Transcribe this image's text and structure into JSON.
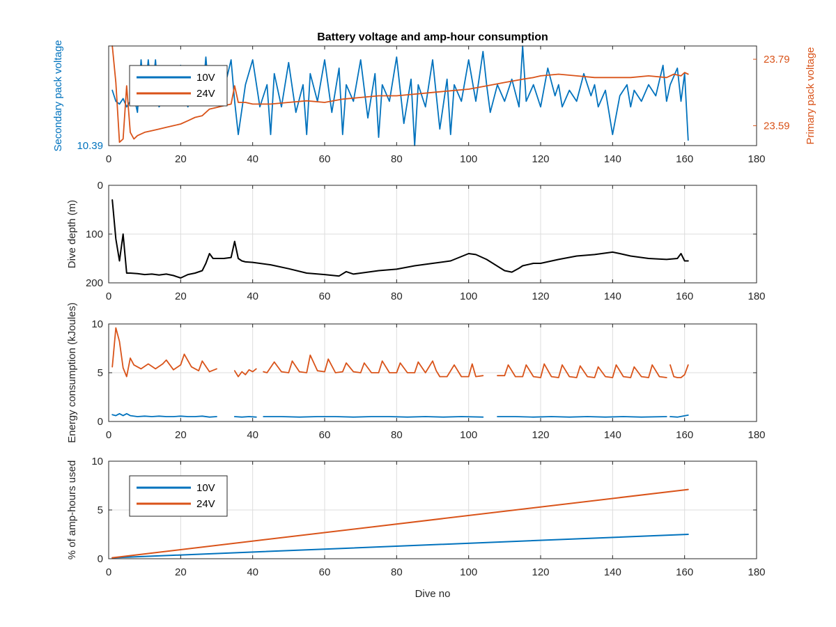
{
  "figure": {
    "title": "Battery voltage and amp-hour consumption",
    "xlabel": "Dive no"
  },
  "colors": {
    "blue": "#0072BD",
    "orange": "#D95319",
    "black": "#000000",
    "axis_text": "#262626",
    "grid": "#dcdcdc"
  },
  "chart_data": [
    {
      "type": "line",
      "title": "Battery voltage and amp-hour consumption",
      "xlabel": "",
      "ylabel": "Secondary pack voltage",
      "y2label": "Primary pack voltage",
      "xlim": [
        0,
        180
      ],
      "xticks": [
        0,
        20,
        40,
        60,
        80,
        100,
        120,
        140,
        160,
        180
      ],
      "ylim": [
        10.39,
        10.57
      ],
      "yticks": [
        10.39
      ],
      "ytick_labels": [
        "10.39"
      ],
      "y2lim": [
        23.53,
        23.83
      ],
      "y2ticks": [
        23.59,
        23.79
      ],
      "y2tick_labels": [
        "23.59",
        "23.79"
      ],
      "grid": false,
      "legend": {
        "location": "top-left",
        "entries": [
          "10V",
          "24V"
        ]
      },
      "series": [
        {
          "name": "10V",
          "axis": "left",
          "color": "#0072BD",
          "x": [
            1,
            2,
            3,
            4,
            5,
            6,
            7,
            8,
            9,
            10,
            11,
            12,
            13,
            14,
            15,
            16,
            17,
            18,
            19,
            20,
            21,
            22,
            23,
            24,
            25,
            26,
            27,
            28,
            30,
            32,
            34,
            35,
            36,
            38,
            40,
            42,
            44,
            45,
            46,
            48,
            50,
            52,
            54,
            55,
            56,
            58,
            60,
            62,
            64,
            65,
            66,
            68,
            70,
            72,
            74,
            75,
            76,
            78,
            80,
            82,
            84,
            85,
            86,
            88,
            90,
            92,
            94,
            95,
            96,
            98,
            100,
            102,
            104,
            105,
            106,
            108,
            110,
            112,
            114,
            115,
            116,
            118,
            120,
            122,
            124,
            125,
            126,
            128,
            130,
            132,
            134,
            135,
            136,
            138,
            140,
            142,
            144,
            145,
            146,
            148,
            150,
            152,
            154,
            155,
            156,
            158,
            159,
            160,
            161
          ],
          "values": [
            10.49,
            10.47,
            10.465,
            10.475,
            10.46,
            10.47,
            10.48,
            10.45,
            10.545,
            10.47,
            10.545,
            10.48,
            10.545,
            10.46,
            10.47,
            10.52,
            10.475,
            10.49,
            10.465,
            10.535,
            10.48,
            10.46,
            10.49,
            10.47,
            10.5,
            10.47,
            10.55,
            10.47,
            10.52,
            10.49,
            10.545,
            10.47,
            10.41,
            10.5,
            10.545,
            10.46,
            10.5,
            10.41,
            10.52,
            10.46,
            10.54,
            10.45,
            10.5,
            10.41,
            10.52,
            10.47,
            10.545,
            10.45,
            10.53,
            10.41,
            10.5,
            10.47,
            10.545,
            10.44,
            10.52,
            10.405,
            10.5,
            10.47,
            10.55,
            10.43,
            10.51,
            10.39,
            10.5,
            10.46,
            10.545,
            10.42,
            10.51,
            10.41,
            10.5,
            10.47,
            10.545,
            10.47,
            10.56,
            10.5,
            10.45,
            10.5,
            10.47,
            10.51,
            10.46,
            10.57,
            10.47,
            10.5,
            10.46,
            10.53,
            10.48,
            10.5,
            10.46,
            10.49,
            10.47,
            10.52,
            10.48,
            10.5,
            10.46,
            10.49,
            10.41,
            10.48,
            10.5,
            10.46,
            10.49,
            10.47,
            10.5,
            10.48,
            10.535,
            10.47,
            10.5,
            10.53,
            10.47,
            10.52,
            10.4
          ]
        },
        {
          "name": "24V",
          "axis": "right",
          "color": "#D95319",
          "x": [
            1,
            2,
            3,
            4,
            5,
            6,
            7,
            8,
            10,
            12,
            14,
            16,
            18,
            20,
            22,
            24,
            26,
            28,
            30,
            32,
            34,
            35,
            36,
            38,
            40,
            45,
            50,
            55,
            60,
            65,
            70,
            75,
            80,
            85,
            90,
            95,
            100,
            105,
            110,
            115,
            118,
            120,
            125,
            130,
            135,
            140,
            145,
            150,
            155,
            157,
            159,
            160,
            161
          ],
          "values": [
            23.83,
            23.72,
            23.54,
            23.55,
            23.71,
            23.57,
            23.55,
            23.56,
            23.57,
            23.575,
            23.58,
            23.585,
            23.59,
            23.595,
            23.605,
            23.615,
            23.62,
            23.64,
            23.645,
            23.65,
            23.655,
            23.71,
            23.66,
            23.66,
            23.655,
            23.655,
            23.66,
            23.665,
            23.66,
            23.67,
            23.675,
            23.68,
            23.68,
            23.685,
            23.69,
            23.695,
            23.7,
            23.71,
            23.72,
            23.73,
            23.735,
            23.74,
            23.745,
            23.74,
            23.735,
            23.735,
            23.735,
            23.74,
            23.735,
            23.745,
            23.74,
            23.75,
            23.745
          ]
        }
      ]
    },
    {
      "type": "line",
      "xlabel": "",
      "ylabel": "Dive depth (m)",
      "xlim": [
        0,
        180
      ],
      "xticks": [
        0,
        20,
        40,
        60,
        80,
        100,
        120,
        140,
        160,
        180
      ],
      "ylim": [
        0,
        200
      ],
      "y_reversed": true,
      "yticks": [
        0,
        100,
        200
      ],
      "grid": true,
      "series": [
        {
          "color": "#000000",
          "x": [
            1,
            2,
            3,
            4,
            5,
            6,
            8,
            10,
            12,
            14,
            16,
            18,
            20,
            22,
            24,
            26,
            27,
            28,
            29,
            30,
            32,
            34,
            35,
            36,
            37,
            38,
            40,
            45,
            50,
            55,
            60,
            64,
            66,
            68,
            70,
            75,
            80,
            85,
            90,
            95,
            100,
            102,
            105,
            110,
            112,
            114,
            115,
            118,
            120,
            125,
            130,
            135,
            140,
            142,
            145,
            150,
            155,
            158,
            159,
            160,
            161
          ],
          "values": [
            30,
            110,
            155,
            100,
            180,
            180,
            181,
            183,
            182,
            184,
            182,
            185,
            190,
            183,
            180,
            175,
            160,
            140,
            150,
            150,
            150,
            148,
            115,
            150,
            155,
            157,
            158,
            163,
            171,
            180,
            183,
            186,
            177,
            182,
            180,
            175,
            172,
            165,
            160,
            155,
            140,
            142,
            152,
            175,
            178,
            170,
            165,
            160,
            160,
            152,
            145,
            142,
            137,
            140,
            145,
            150,
            152,
            150,
            140,
            155,
            155
          ]
        }
      ]
    },
    {
      "type": "line",
      "xlabel": "",
      "ylabel": "Energy consumption (kJoules)",
      "xlim": [
        0,
        180
      ],
      "xticks": [
        0,
        20,
        40,
        60,
        80,
        100,
        120,
        140,
        160,
        180
      ],
      "ylim": [
        0,
        10
      ],
      "yticks": [
        0,
        5,
        10
      ],
      "grid": true,
      "series": [
        {
          "color": "#D95319",
          "segments": [
            {
              "x": [
                1,
                2,
                3,
                4,
                5,
                6,
                7,
                9,
                11,
                13,
                15,
                16,
                18,
                20,
                21,
                23,
                25,
                26,
                28,
                30
              ],
              "values": [
                5.6,
                9.6,
                8.2,
                5.5,
                4.6,
                6.5,
                5.8,
                5.4,
                5.9,
                5.4,
                5.9,
                6.3,
                5.3,
                5.8,
                6.9,
                5.6,
                5.2,
                6.2,
                5.1,
                5.4
              ]
            },
            {
              "x": [
                35,
                36,
                37,
                38,
                39,
                40,
                41
              ],
              "values": [
                5.2,
                4.6,
                5.1,
                4.8,
                5.3,
                5.1,
                5.4
              ]
            },
            {
              "x": [
                43,
                44,
                46,
                48,
                50,
                51,
                53,
                55,
                56,
                58,
                60,
                61,
                63,
                65,
                66,
                68,
                70,
                71,
                73,
                75,
                76,
                78,
                80,
                81,
                83,
                85,
                86,
                88,
                90,
                91,
                92,
                94,
                96,
                98,
                100,
                101,
                102,
                104
              ],
              "values": [
                5.1,
                5.0,
                6.1,
                5.1,
                5.0,
                6.2,
                5.1,
                5.0,
                6.8,
                5.2,
                5.1,
                6.4,
                5.0,
                5.1,
                6.0,
                5.1,
                5.0,
                6.0,
                5.0,
                5.0,
                6.2,
                5.0,
                5.0,
                6.0,
                5.0,
                5.0,
                6.1,
                5.0,
                6.2,
                5.2,
                4.6,
                4.6,
                5.8,
                4.6,
                4.6,
                5.9,
                4.6,
                4.7
              ]
            },
            {
              "x": [
                108,
                110,
                111,
                113,
                115,
                116,
                118,
                120,
                121,
                123,
                125,
                126,
                128,
                130,
                131,
                133,
                135,
                136,
                138,
                140,
                141,
                143,
                145,
                146,
                148,
                150,
                151,
                153,
                155
              ],
              "values": [
                4.7,
                4.7,
                5.8,
                4.6,
                4.6,
                5.8,
                4.6,
                4.5,
                5.9,
                4.6,
                4.5,
                5.8,
                4.6,
                4.5,
                5.7,
                4.6,
                4.5,
                5.6,
                4.6,
                4.5,
                5.8,
                4.6,
                4.5,
                5.6,
                4.6,
                4.5,
                5.8,
                4.6,
                4.5
              ]
            },
            {
              "x": [
                156,
                157,
                158,
                159,
                160,
                161
              ],
              "values": [
                5.8,
                4.6,
                4.5,
                4.5,
                4.8,
                5.8
              ]
            }
          ]
        },
        {
          "color": "#0072BD",
          "segments": [
            {
              "x": [
                1,
                2,
                3,
                4,
                5,
                6,
                8,
                10,
                12,
                14,
                16,
                18,
                20,
                22,
                24,
                26,
                28,
                30
              ],
              "values": [
                0.7,
                0.6,
                0.8,
                0.6,
                0.8,
                0.6,
                0.5,
                0.55,
                0.5,
                0.55,
                0.5,
                0.5,
                0.55,
                0.5,
                0.5,
                0.55,
                0.45,
                0.5
              ]
            },
            {
              "x": [
                35,
                37,
                39,
                41
              ],
              "values": [
                0.5,
                0.45,
                0.5,
                0.45
              ]
            },
            {
              "x": [
                43,
                48,
                53,
                58,
                63,
                68,
                73,
                78,
                83,
                88,
                93,
                98,
                104
              ],
              "values": [
                0.5,
                0.5,
                0.45,
                0.5,
                0.5,
                0.45,
                0.5,
                0.5,
                0.45,
                0.5,
                0.45,
                0.5,
                0.45
              ]
            },
            {
              "x": [
                108,
                113,
                118,
                123,
                128,
                133,
                138,
                143,
                148,
                155
              ],
              "values": [
                0.5,
                0.5,
                0.45,
                0.5,
                0.45,
                0.5,
                0.45,
                0.5,
                0.45,
                0.5
              ]
            },
            {
              "x": [
                156,
                158,
                161
              ],
              "values": [
                0.5,
                0.45,
                0.65
              ]
            }
          ]
        }
      ]
    },
    {
      "type": "line",
      "xlabel": "Dive no",
      "ylabel": "% of amp-hours used",
      "xlim": [
        0,
        180
      ],
      "xticks": [
        0,
        20,
        40,
        60,
        80,
        100,
        120,
        140,
        160,
        180
      ],
      "ylim": [
        0,
        10
      ],
      "yticks": [
        0,
        5,
        10
      ],
      "grid": true,
      "legend": {
        "location": "top-left",
        "entries": [
          "10V",
          "24V"
        ]
      },
      "series": [
        {
          "name": "10V",
          "color": "#0072BD",
          "x": [
            1,
            161
          ],
          "values": [
            0.1,
            2.5
          ]
        },
        {
          "name": "24V",
          "color": "#D95319",
          "x": [
            1,
            161
          ],
          "values": [
            0.1,
            7.1
          ]
        }
      ]
    }
  ]
}
